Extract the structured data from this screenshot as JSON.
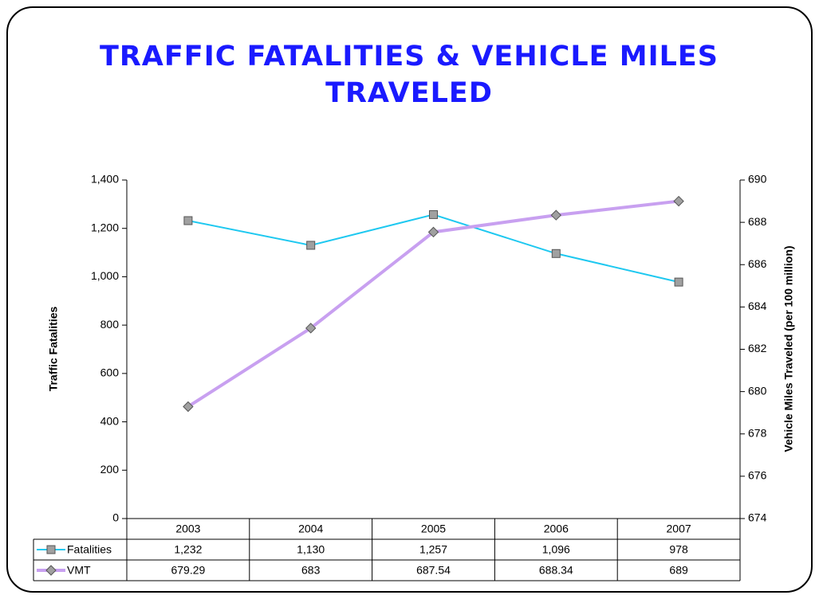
{
  "chart_data": {
    "type": "line",
    "title": "TRAFFIC FATALITIES & VEHICLE MILES TRAVELED",
    "ylabel": "Traffic Fatalities",
    "y2label": "Vehicle Miles Traveled (per 100 million)",
    "categories": [
      "2003",
      "2004",
      "2005",
      "2006",
      "2007"
    ],
    "series": [
      {
        "name": "Fatalities",
        "color": "#1ec8f0",
        "marker_color": "#a0a0a0",
        "marker": "square",
        "values": [
          1232,
          1130,
          1257,
          1096,
          978
        ],
        "value_labels": [
          "1,232",
          "1,130",
          "1,257",
          "1,096",
          "978"
        ]
      },
      {
        "name": "VMT",
        "color": "#c8a0f0",
        "marker_color": "#a0a0a0",
        "marker": "diamond",
        "axis": "y2",
        "values": [
          679.29,
          683,
          687.54,
          688.34,
          689
        ]
      }
    ],
    "ylim": [
      0,
      1400
    ],
    "yticks": [
      0,
      200,
      400,
      600,
      800,
      {
        "value": 1000,
        "label": "1,000"
      },
      {
        "value": 1200,
        "label": "1,200"
      },
      {
        "value": 1400,
        "label": "1,400"
      }
    ],
    "y2lim": [
      674,
      690
    ],
    "y2ticks": [
      674,
      676,
      678,
      680,
      682,
      684,
      686,
      688,
      690
    ],
    "grid": false
  }
}
